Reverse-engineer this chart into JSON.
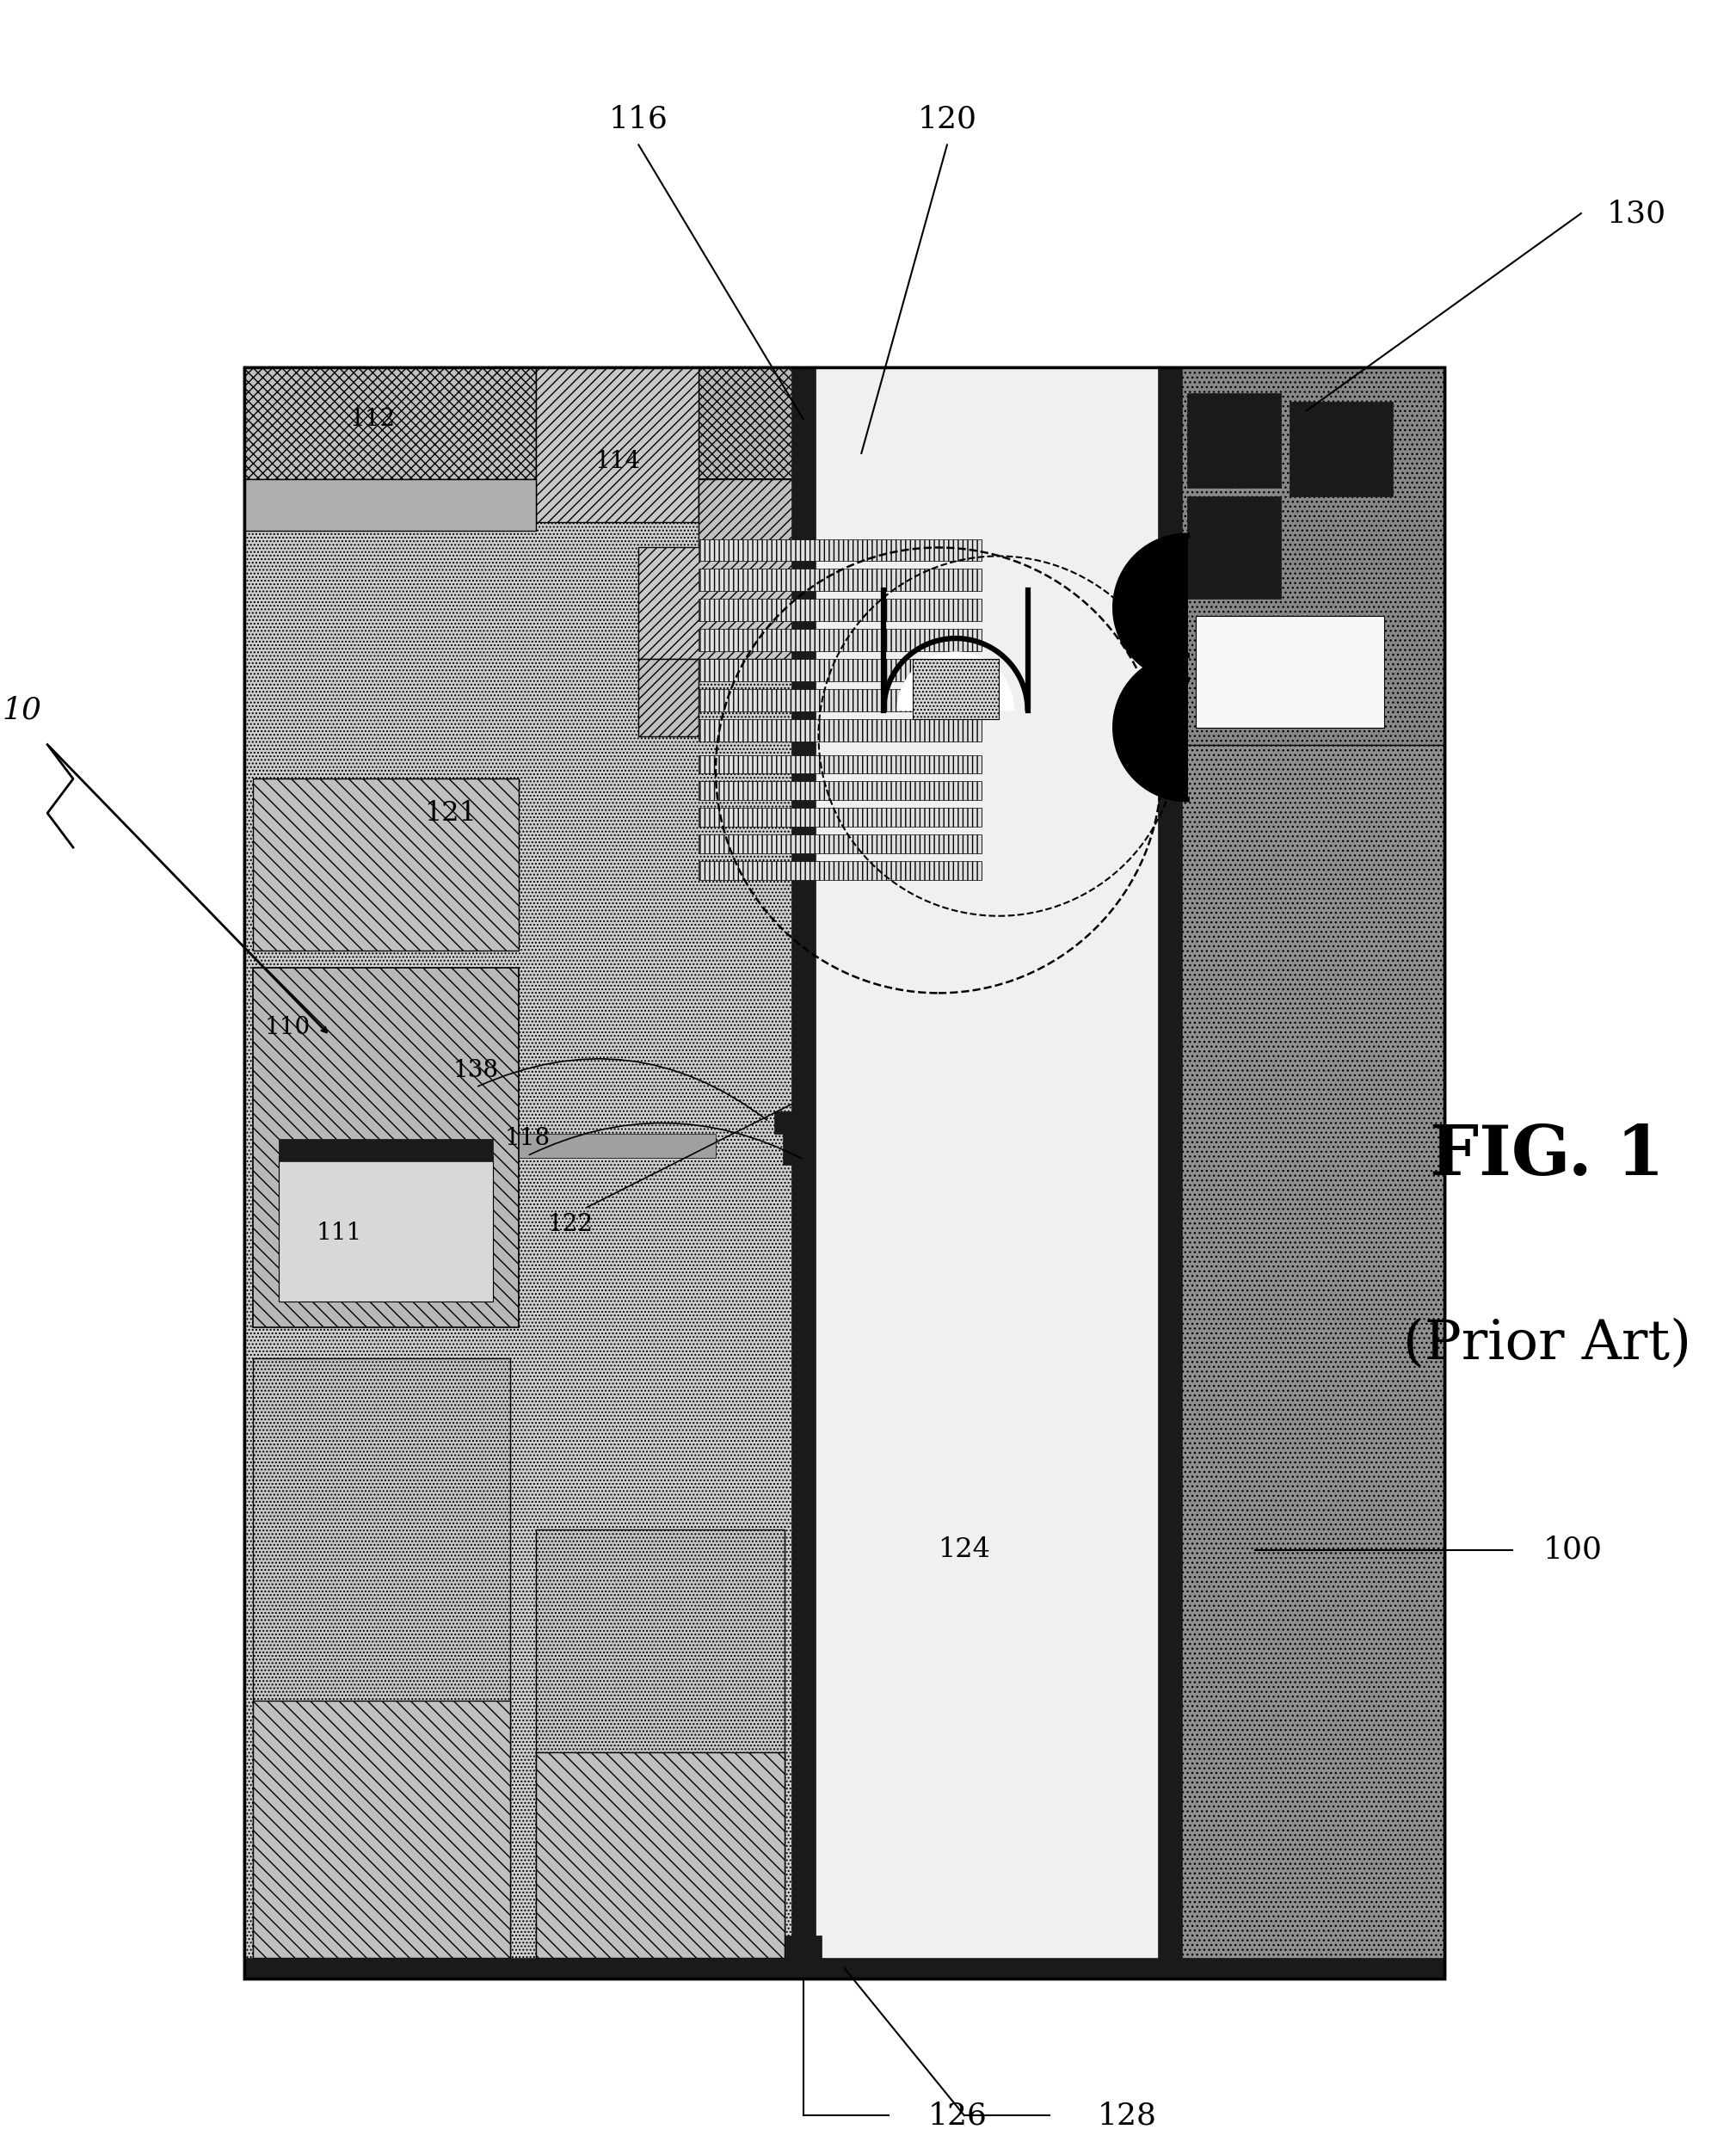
{
  "fig_label": "FIG. 1",
  "fig_sublabel": "(Prior Art)",
  "ref_10": "10",
  "ref_100": "100",
  "ref_110": "110",
  "ref_111": "111",
  "ref_112": "112",
  "ref_114": "114",
  "ref_116": "116",
  "ref_118": "118",
  "ref_120": "120",
  "ref_121": "121",
  "ref_122": "122",
  "ref_124": "124",
  "ref_126": "126",
  "ref_128": "128",
  "ref_130": "130",
  "ref_138": "138",
  "bg": "#ffffff",
  "black": "#000000",
  "dark": "#1a1a1a",
  "mid_gray": "#888888",
  "light_gray": "#cccccc",
  "feol_gray": "#c8c8c8",
  "beol_white": "#f5f5f5",
  "substrate_gray": "#909090",
  "diag_hatch_gray": "#b0b0b0",
  "stipple_gray": "#d2d2d2"
}
